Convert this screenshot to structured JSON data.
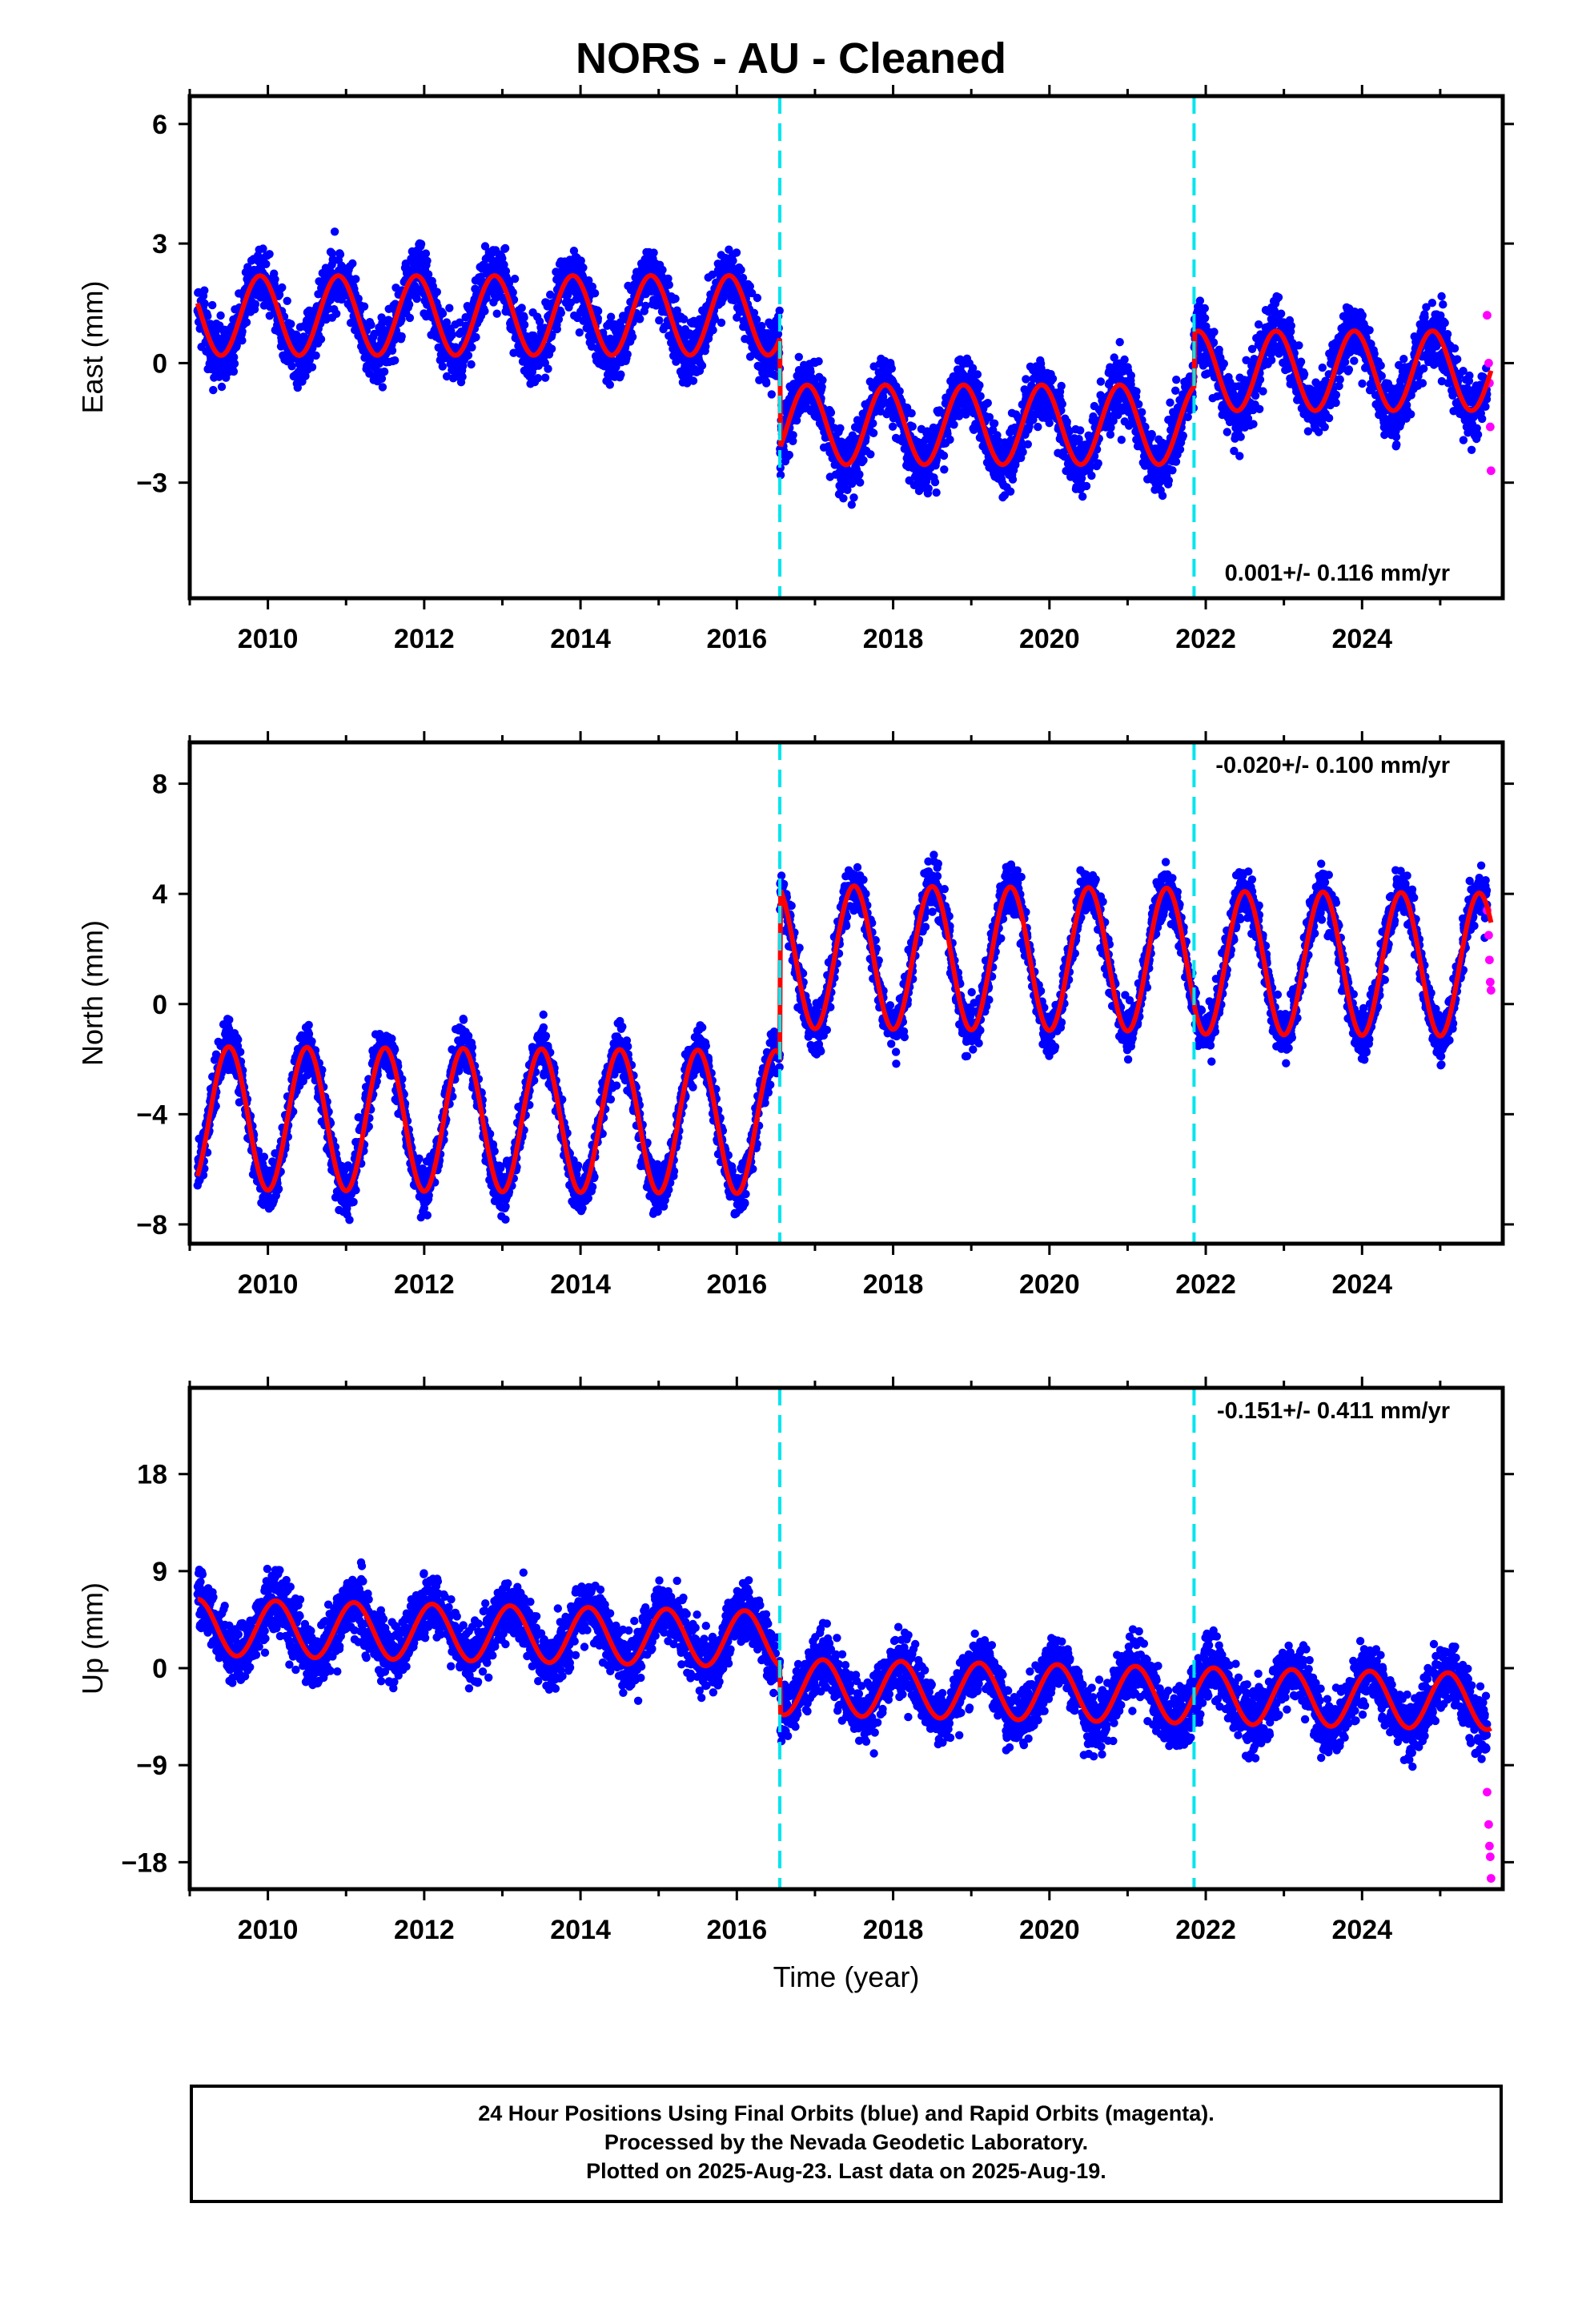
{
  "title": "NORS  - AU - Cleaned",
  "footer": {
    "line1": "24 Hour Positions Using Final Orbits (blue) and Rapid Orbits (magenta).",
    "line2": "Processed by the Nevada Geodetic Laboratory.",
    "line3": "Plotted on 2025-Aug-23. Last data on 2025-Aug-19."
  },
  "colors": {
    "final_orbits": "#0000ff",
    "rapid_orbits": "#ff00ff",
    "model": "#ff0000",
    "steps": "#00e5ee",
    "frame": "#000000"
  },
  "chart_data": [
    {
      "type": "scatter",
      "component": "east",
      "ylabel": "East (mm)",
      "xlabel": "",
      "xlim": [
        2009.0,
        2025.8
      ],
      "ylim": [
        -5.9,
        6.7
      ],
      "xticks": [
        2010,
        2012,
        2014,
        2016,
        2018,
        2020,
        2022,
        2024
      ],
      "yticks": [
        -3,
        0,
        3,
        6
      ],
      "rate": "0.001+/- 0.116 mm/yr",
      "rate_position": "bottom-right",
      "steps": [
        2016.55,
        2021.85
      ],
      "model": {
        "segments": [
          {
            "x_start": 2009.1,
            "x_end": 2016.55,
            "offset": 1.2
          },
          {
            "x_start": 2016.55,
            "x_end": 2021.85,
            "offset": -1.55
          },
          {
            "x_start": 2021.85,
            "x_end": 2025.65,
            "offset": -0.2
          }
        ],
        "annual_amplitude": 1.0,
        "annual_phase_year": 0.9,
        "trend": 0.001
      },
      "rapid_orbits": {
        "x": [
          2025.6,
          2025.62,
          2025.63,
          2025.64,
          2025.65
        ],
        "y": [
          1.2,
          0.0,
          -0.5,
          -1.6,
          -2.7
        ]
      },
      "scatter_sd": 1.0
    },
    {
      "type": "scatter",
      "component": "north",
      "ylabel": "North (mm)",
      "xlabel": "",
      "xlim": [
        2009.0,
        2025.8
      ],
      "ylim": [
        -8.7,
        9.5
      ],
      "xticks": [
        2010,
        2012,
        2014,
        2016,
        2018,
        2020,
        2022,
        2024
      ],
      "yticks": [
        -8,
        -4,
        0,
        4,
        8
      ],
      "rate": "-0.020+/- 0.100 mm/yr",
      "rate_position": "top-right",
      "steps": [
        2016.55,
        2021.85
      ],
      "model": {
        "segments": [
          {
            "x_start": 2009.1,
            "x_end": 2016.55,
            "offset": -4.3
          },
          {
            "x_start": 2016.55,
            "x_end": 2021.85,
            "offset": 1.7
          },
          {
            "x_start": 2021.85,
            "x_end": 2025.65,
            "offset": 1.6
          }
        ],
        "annual_amplitude": 2.6,
        "annual_phase_year": 0.5,
        "trend": -0.02
      },
      "rapid_orbits": {
        "x": [
          2025.6,
          2025.62,
          2025.63,
          2025.64,
          2025.65
        ],
        "y": [
          3.4,
          2.5,
          1.6,
          0.8,
          0.5
        ]
      },
      "scatter_sd": 1.1
    },
    {
      "type": "scatter",
      "component": "up",
      "ylabel": "Up (mm)",
      "xlabel": "Time (year)",
      "xlim": [
        2009.0,
        2025.8
      ],
      "ylim": [
        -20.5,
        26.0
      ],
      "xticks": [
        2010,
        2012,
        2014,
        2016,
        2018,
        2020,
        2022,
        2024
      ],
      "yticks": [
        -18,
        -9,
        0,
        9,
        18
      ],
      "rate": "-0.151+/- 0.411 mm/yr",
      "rate_position": "top-right",
      "steps": [
        2016.55,
        2021.85
      ],
      "model": {
        "segments": [
          {
            "x_start": 2009.1,
            "x_end": 2016.55,
            "offset": 2.6
          },
          {
            "x_start": 2016.55,
            "x_end": 2021.85,
            "offset": -1.8
          },
          {
            "x_start": 2021.85,
            "x_end": 2025.65,
            "offset": -1.8
          }
        ],
        "annual_amplitude": 2.6,
        "annual_phase_year": 0.1,
        "trend": -0.151
      },
      "rapid_orbits": {
        "x": [
          2025.6,
          2025.62,
          2025.63,
          2025.64,
          2025.65
        ],
        "y": [
          -11.5,
          -14.5,
          -16.5,
          -17.5,
          -19.5
        ]
      },
      "scatter_sd": 3.6
    }
  ]
}
